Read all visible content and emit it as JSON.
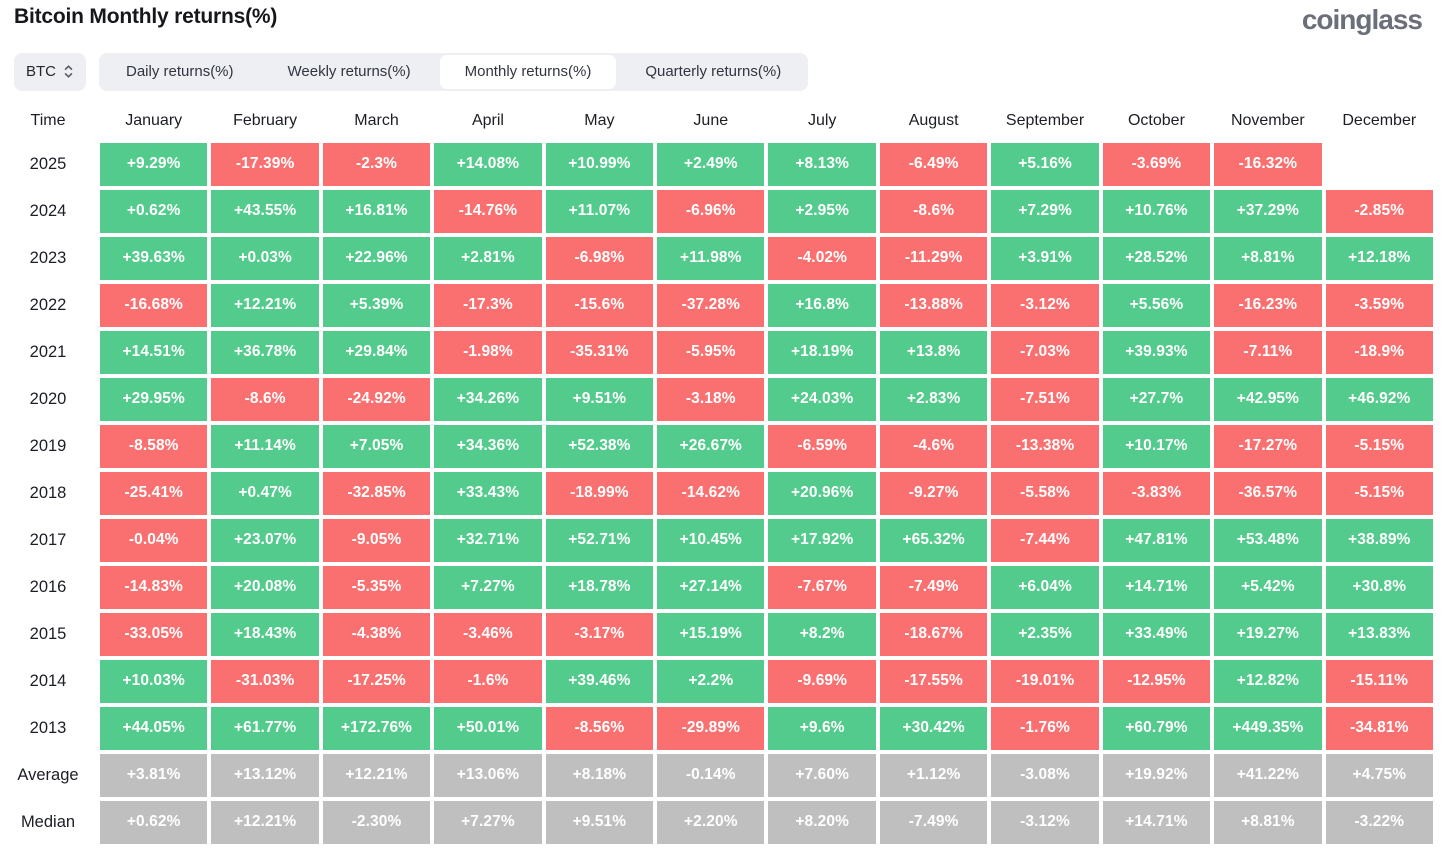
{
  "header": {
    "title": "Bitcoin Monthly returns(%)",
    "brand": "coinglass"
  },
  "controls": {
    "symbol": "BTC",
    "tabs": [
      {
        "label": "Daily returns(%)",
        "active": false
      },
      {
        "label": "Weekly returns(%)",
        "active": false
      },
      {
        "label": "Monthly returns(%)",
        "active": true
      },
      {
        "label": "Quarterly returns(%)",
        "active": false
      }
    ]
  },
  "colors": {
    "positive": "#52CB8C",
    "negative": "#FA7070",
    "neutral": "#BFBFBF"
  },
  "chart_data": {
    "type": "heatmap",
    "title": "Bitcoin Monthly returns(%)",
    "unit": "%",
    "corner_label": "Time",
    "columns": [
      "January",
      "February",
      "March",
      "April",
      "May",
      "June",
      "July",
      "August",
      "September",
      "October",
      "November",
      "December"
    ],
    "rows": [
      {
        "label": "2025",
        "summary": false,
        "values": [
          "+9.29%",
          "-17.39%",
          "-2.3%",
          "+14.08%",
          "+10.99%",
          "+2.49%",
          "+8.13%",
          "-6.49%",
          "+5.16%",
          "-3.69%",
          "-16.32%",
          null
        ]
      },
      {
        "label": "2024",
        "summary": false,
        "values": [
          "+0.62%",
          "+43.55%",
          "+16.81%",
          "-14.76%",
          "+11.07%",
          "-6.96%",
          "+2.95%",
          "-8.6%",
          "+7.29%",
          "+10.76%",
          "+37.29%",
          "-2.85%"
        ]
      },
      {
        "label": "2023",
        "summary": false,
        "values": [
          "+39.63%",
          "+0.03%",
          "+22.96%",
          "+2.81%",
          "-6.98%",
          "+11.98%",
          "-4.02%",
          "-11.29%",
          "+3.91%",
          "+28.52%",
          "+8.81%",
          "+12.18%"
        ]
      },
      {
        "label": "2022",
        "summary": false,
        "values": [
          "-16.68%",
          "+12.21%",
          "+5.39%",
          "-17.3%",
          "-15.6%",
          "-37.28%",
          "+16.8%",
          "-13.88%",
          "-3.12%",
          "+5.56%",
          "-16.23%",
          "-3.59%"
        ]
      },
      {
        "label": "2021",
        "summary": false,
        "values": [
          "+14.51%",
          "+36.78%",
          "+29.84%",
          "-1.98%",
          "-35.31%",
          "-5.95%",
          "+18.19%",
          "+13.8%",
          "-7.03%",
          "+39.93%",
          "-7.11%",
          "-18.9%"
        ]
      },
      {
        "label": "2020",
        "summary": false,
        "values": [
          "+29.95%",
          "-8.6%",
          "-24.92%",
          "+34.26%",
          "+9.51%",
          "-3.18%",
          "+24.03%",
          "+2.83%",
          "-7.51%",
          "+27.7%",
          "+42.95%",
          "+46.92%"
        ]
      },
      {
        "label": "2019",
        "summary": false,
        "values": [
          "-8.58%",
          "+11.14%",
          "+7.05%",
          "+34.36%",
          "+52.38%",
          "+26.67%",
          "-6.59%",
          "-4.6%",
          "-13.38%",
          "+10.17%",
          "-17.27%",
          "-5.15%"
        ]
      },
      {
        "label": "2018",
        "summary": false,
        "values": [
          "-25.41%",
          "+0.47%",
          "-32.85%",
          "+33.43%",
          "-18.99%",
          "-14.62%",
          "+20.96%",
          "-9.27%",
          "-5.58%",
          "-3.83%",
          "-36.57%",
          "-5.15%"
        ]
      },
      {
        "label": "2017",
        "summary": false,
        "values": [
          "-0.04%",
          "+23.07%",
          "-9.05%",
          "+32.71%",
          "+52.71%",
          "+10.45%",
          "+17.92%",
          "+65.32%",
          "-7.44%",
          "+47.81%",
          "+53.48%",
          "+38.89%"
        ]
      },
      {
        "label": "2016",
        "summary": false,
        "values": [
          "-14.83%",
          "+20.08%",
          "-5.35%",
          "+7.27%",
          "+18.78%",
          "+27.14%",
          "-7.67%",
          "-7.49%",
          "+6.04%",
          "+14.71%",
          "+5.42%",
          "+30.8%"
        ]
      },
      {
        "label": "2015",
        "summary": false,
        "values": [
          "-33.05%",
          "+18.43%",
          "-4.38%",
          "-3.46%",
          "-3.17%",
          "+15.19%",
          "+8.2%",
          "-18.67%",
          "+2.35%",
          "+33.49%",
          "+19.27%",
          "+13.83%"
        ]
      },
      {
        "label": "2014",
        "summary": false,
        "values": [
          "+10.03%",
          "-31.03%",
          "-17.25%",
          "-1.6%",
          "+39.46%",
          "+2.2%",
          "-9.69%",
          "-17.55%",
          "-19.01%",
          "-12.95%",
          "+12.82%",
          "-15.11%"
        ]
      },
      {
        "label": "2013",
        "summary": false,
        "values": [
          "+44.05%",
          "+61.77%",
          "+172.76%",
          "+50.01%",
          "-8.56%",
          "-29.89%",
          "+9.6%",
          "+30.42%",
          "-1.76%",
          "+60.79%",
          "+449.35%",
          "-34.81%"
        ]
      },
      {
        "label": "Average",
        "summary": true,
        "values": [
          "+3.81%",
          "+13.12%",
          "+12.21%",
          "+13.06%",
          "+8.18%",
          "-0.14%",
          "+7.60%",
          "+1.12%",
          "-3.08%",
          "+19.92%",
          "+41.22%",
          "+4.75%"
        ]
      },
      {
        "label": "Median",
        "summary": true,
        "values": [
          "+0.62%",
          "+12.21%",
          "-2.30%",
          "+7.27%",
          "+9.51%",
          "+2.20%",
          "+8.20%",
          "-7.49%",
          "-3.12%",
          "+14.71%",
          "+8.81%",
          "-3.22%"
        ]
      }
    ]
  }
}
